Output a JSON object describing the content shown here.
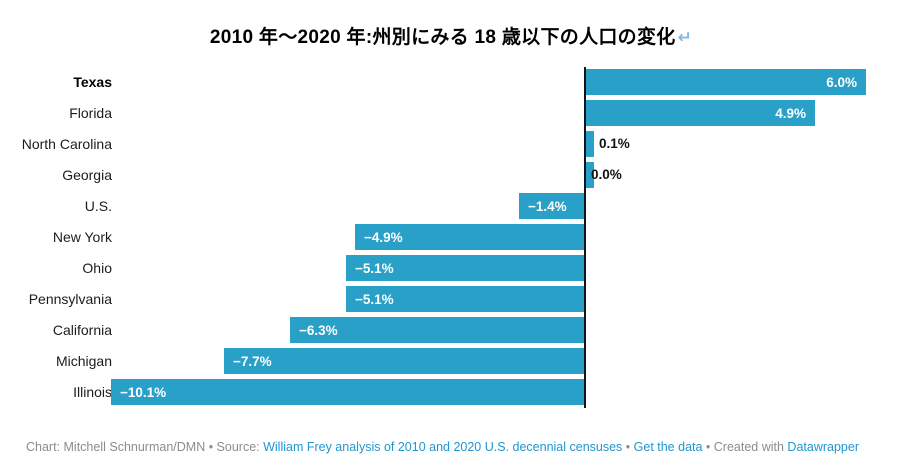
{
  "header": {
    "icon_glyph": "↵"
  },
  "chart_data": {
    "type": "bar",
    "orientation": "horizontal",
    "title": "2010 年〜2020 年:州別にみる 18 歳以下の人口の変化",
    "categories": [
      "Texas",
      "Florida",
      "North Carolina",
      "Georgia",
      "U.S.",
      "New York",
      "Ohio",
      "Pennsylvania",
      "California",
      "Michigan",
      "Illinois"
    ],
    "values": [
      6.0,
      4.9,
      0.1,
      0.0,
      -1.4,
      -4.9,
      -5.1,
      -5.1,
      -6.3,
      -7.7,
      -10.1
    ],
    "value_labels": [
      "6.0%",
      "4.9%",
      "0.1%",
      "0.0%",
      "−1.4%",
      "−4.9%",
      "−5.1%",
      "−5.1%",
      "−6.3%",
      "−7.7%",
      "−10.1%"
    ],
    "bold_categories": [
      "Texas"
    ],
    "unit": "%",
    "xlim": [
      -10.1,
      6.0
    ],
    "grid": false,
    "zero_line": true,
    "legend": "none"
  },
  "colors": {
    "bar": "#29a0c8",
    "axis": "#10151a",
    "value_inside": "#ffffff",
    "value_outside": "#111111",
    "link": "#2196d0",
    "footer_text": "#8c8c8c",
    "title_icon": "#7cb9ea"
  },
  "footer": {
    "parts": [
      {
        "text": "Chart: Mitchell Schnurman/DMN",
        "type": "text"
      },
      {
        "text": " • Source: ",
        "type": "text"
      },
      {
        "text": "William Frey analysis of 2010 and 2020 U.S. decennial censuses",
        "type": "link",
        "name": "source-link"
      },
      {
        "text": " • ",
        "type": "text"
      },
      {
        "text": "Get the data",
        "type": "link",
        "name": "get-the-data-link"
      },
      {
        "text": " • Created with ",
        "type": "text"
      },
      {
        "text": "Datawrapper",
        "type": "link",
        "name": "datawrapper-link"
      }
    ]
  }
}
